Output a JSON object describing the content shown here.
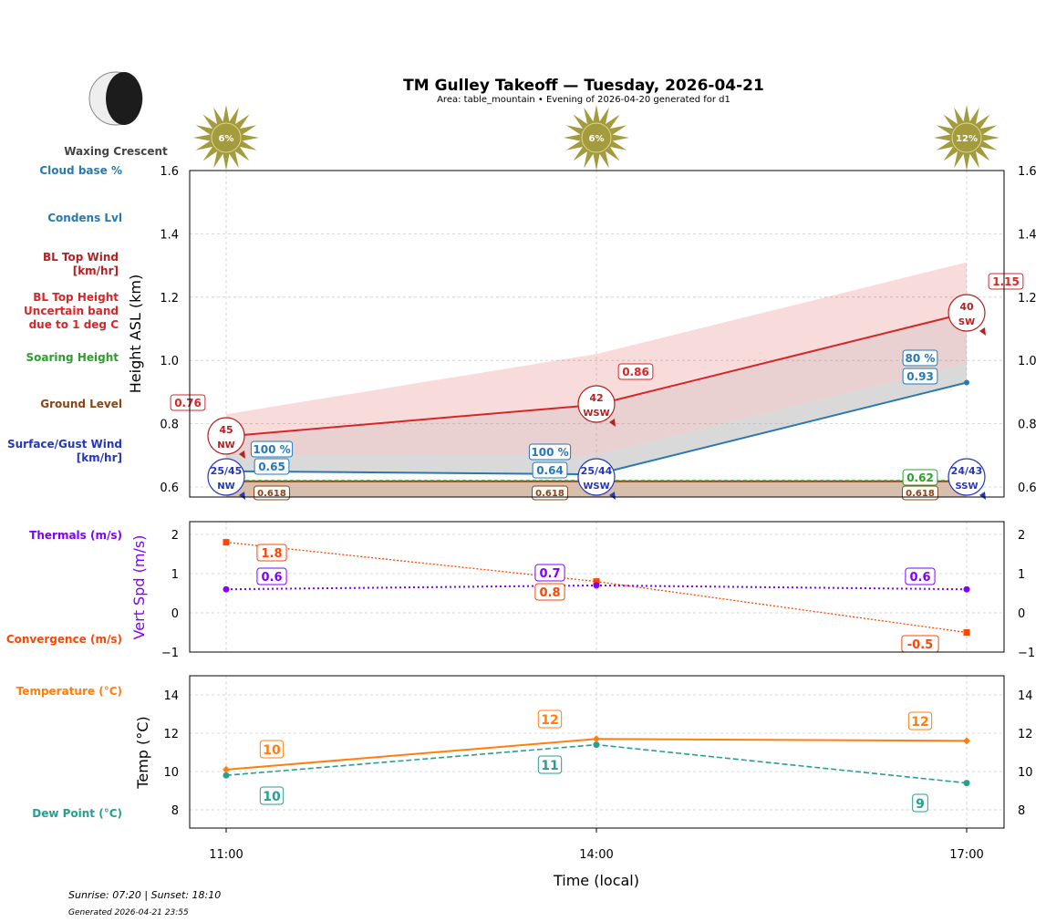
{
  "title": "TM Gulley Takeoff — Tuesday, 2026-04-21",
  "subtitle": "Area: table_mountain • Evening of 2026-04-20 generated for d1",
  "moon": {
    "phase": "Waxing Crescent",
    "icon": "moon-waxing-crescent-icon"
  },
  "footer": {
    "sun": "Sunrise: 07:20 | Sunset: 18:10",
    "generated": "Generated 2026-04-21 23:55"
  },
  "colors": {
    "cloud": "#2878b5",
    "bl": "#d62728",
    "blwind": "#b22222",
    "soar": "#2ca02c",
    "ground": "#8b4513",
    "wind": "#2438b8",
    "therm": "#7f00ff",
    "conv": "#ff4500",
    "temp": "#ff7f0e",
    "dew": "#26a08f",
    "sun": "#a39b3c"
  },
  "legend": {
    "cloud": "Cloud base %",
    "condens": "Condens Lvl",
    "blwind": [
      "BL Top Wind",
      "[km/hr]"
    ],
    "bl": [
      "BL Top Height",
      "Uncertain band",
      "due to 1 deg C"
    ],
    "soar": "Soaring Height",
    "ground": "Ground Level",
    "wind": [
      "Surface/Gust Wind",
      "[km/hr]"
    ],
    "therm": "Thermals (m/s)",
    "conv": "Convergence (m/s)",
    "temp": "Temperature (°C)",
    "dew": "Dew Point (°C)"
  },
  "chart_data": [
    {
      "type": "line",
      "ylabel": "Height ASL (km)",
      "ylim": [
        0.57,
        1.6
      ],
      "yticks": [
        "0.6",
        "0.8",
        "1.0",
        "1.2",
        "1.4",
        "1.6"
      ],
      "x": [
        "11:00",
        "14:00",
        "17:00"
      ],
      "sun_percent": [
        "6%",
        "6%",
        "12%"
      ],
      "bl_top": [
        0.76,
        0.86,
        1.15
      ],
      "bl_top_labels": [
        "0.76",
        "0.86",
        "1.15"
      ],
      "bl_band_upper": [
        0.83,
        1.02,
        1.31
      ],
      "bl_band_lower": [
        0.7,
        0.7,
        0.99
      ],
      "cloud_base": [
        0.65,
        0.64,
        0.93
      ],
      "cloud_base_labels": [
        "0.65",
        "0.64",
        "0.93"
      ],
      "cloud_pct": [
        "100 %",
        "100 %",
        "80 %"
      ],
      "soaring": [
        0.62,
        0.62,
        0.62
      ],
      "soaring_label": "0.62",
      "ground": [
        0.618,
        0.618,
        0.618
      ],
      "ground_labels": [
        "0.618",
        "0.618",
        "0.618"
      ],
      "bl_wind": [
        {
          "speed": "45",
          "dir": "NW"
        },
        {
          "speed": "42",
          "dir": "WSW"
        },
        {
          "speed": "40",
          "dir": "SW"
        }
      ],
      "surface_wind": [
        {
          "speed": "25/45",
          "dir": "NW"
        },
        {
          "speed": "25/44",
          "dir": "WSW"
        },
        {
          "speed": "24/43",
          "dir": "SSW"
        }
      ]
    },
    {
      "type": "line",
      "ylabel": "Vert Spd (m/s)",
      "ylim": [
        -1,
        2.33
      ],
      "yticks": [
        "−1",
        "0",
        "1",
        "2"
      ],
      "thermals": [
        0.6,
        0.7,
        0.6
      ],
      "thermal_labels": [
        "0.6",
        "0.7",
        "0.6"
      ],
      "convergence": [
        1.8,
        0.8,
        -0.5
      ],
      "convergence_labels": [
        "1.8",
        "0.8",
        "-0.5"
      ]
    },
    {
      "type": "line",
      "ylabel": "Temp (°C)",
      "xlabel": "Time (local)",
      "ylim": [
        7,
        15
      ],
      "yticks": [
        "8",
        "10",
        "12",
        "14"
      ],
      "temperature": [
        10.1,
        11.7,
        11.6
      ],
      "temperature_labels": [
        "10",
        "12",
        "12"
      ],
      "dewpoint": [
        9.8,
        11.4,
        9.4
      ],
      "dewpoint_labels": [
        "10",
        "11",
        "9"
      ]
    }
  ]
}
